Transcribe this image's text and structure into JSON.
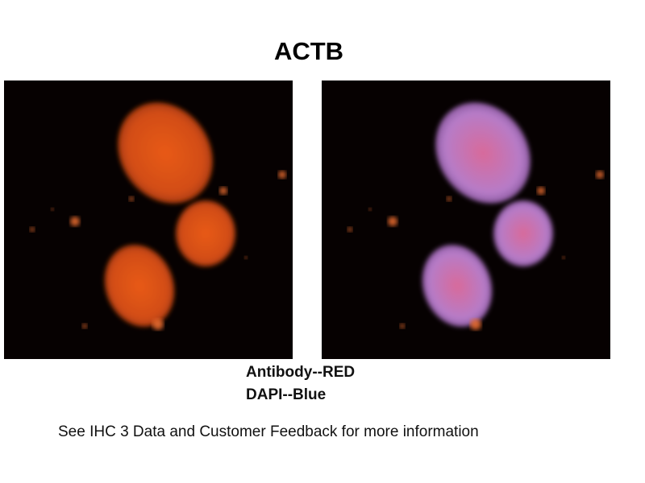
{
  "figure": {
    "title": "ACTB",
    "panels": [
      {
        "name": "antibody-channel",
        "stain_colors": [
          "#e0501a"
        ]
      },
      {
        "name": "merged-channel",
        "stain_colors": [
          "#e0501a",
          "#b080d0"
        ]
      }
    ],
    "legend": [
      "Antibody--RED",
      "DAPI--Blue"
    ],
    "note": "See IHC 3 Data and Customer Feedback for more information"
  }
}
